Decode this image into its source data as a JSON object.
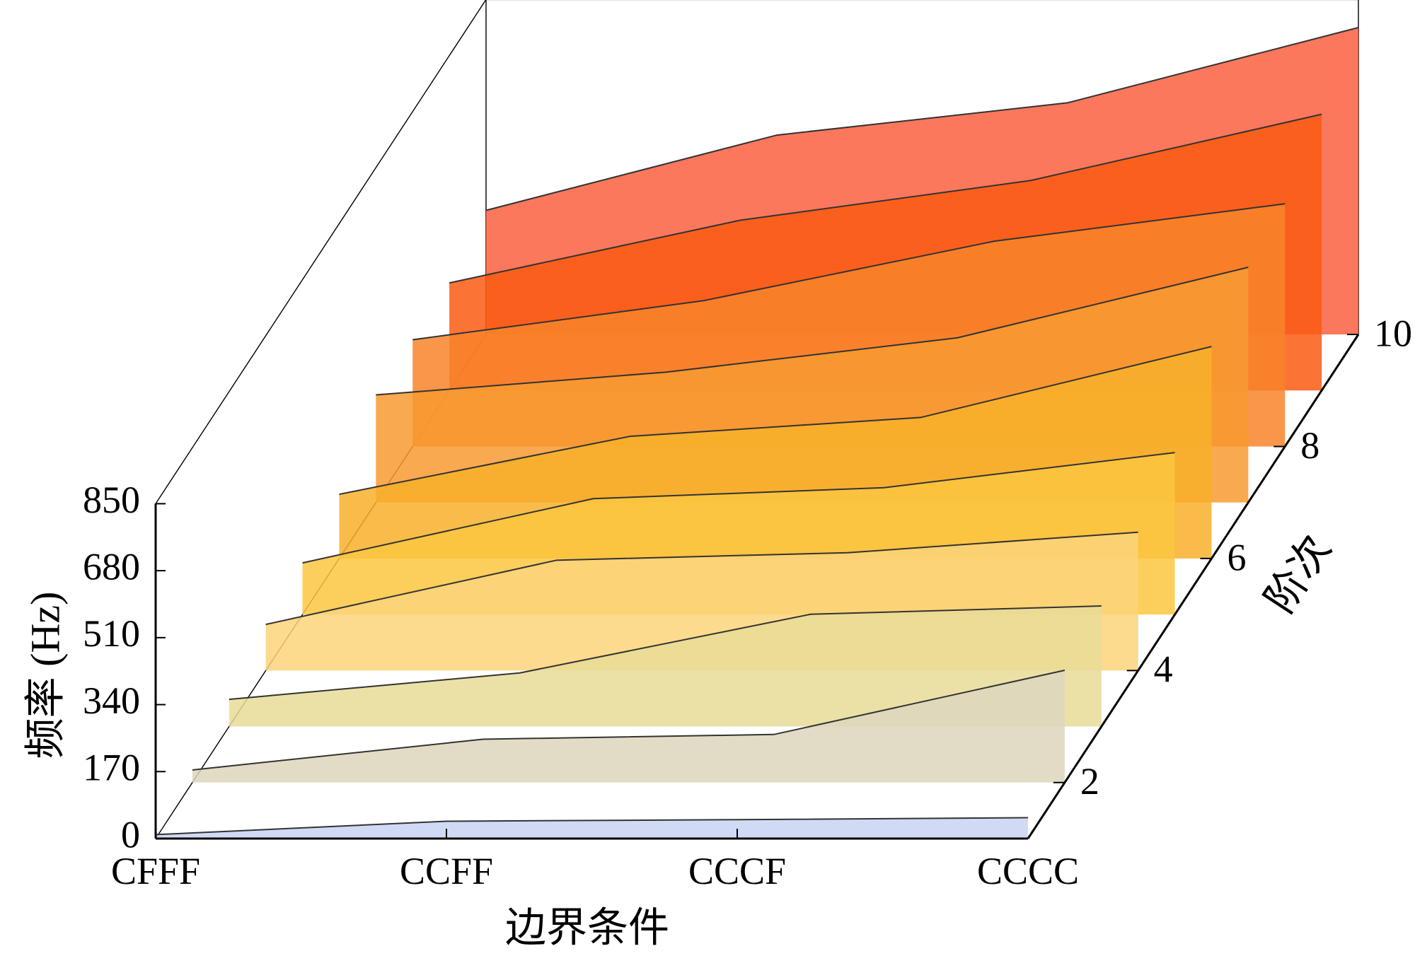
{
  "chart_data": {
    "type": "waterfall3d",
    "x_label": "边界条件",
    "y_label": "频率 (Hz)",
    "z_label": "阶次",
    "categories": [
      "CFFF",
      "CCFF",
      "CCCF",
      "CCCC"
    ],
    "ylim": [
      0,
      850
    ],
    "yticks": [
      0,
      170,
      340,
      510,
      680,
      850
    ],
    "zlim": [
      1,
      10
    ],
    "zticks": [
      2,
      4,
      6,
      8,
      10
    ],
    "z": [
      1,
      2,
      3,
      4,
      5,
      6,
      7,
      8,
      9,
      10
    ],
    "series": [
      {
        "color": "#c9d3f3",
        "values": [
          10,
          44,
          48,
          53
        ]
      },
      {
        "color": "#ddd6bd",
        "values": [
          32,
          110,
          122,
          285
        ]
      },
      {
        "color": "#e8dc98",
        "values": [
          69,
          136,
          285,
          306
        ]
      },
      {
        "color": "#fcd47a",
        "values": [
          117,
          280,
          299,
          351
        ]
      },
      {
        "color": "#fcc640",
        "values": [
          131,
          294,
          322,
          411
        ]
      },
      {
        "color": "#f8b02a",
        "values": [
          163,
          310,
          358,
          538
        ]
      },
      {
        "color": "#f89a30",
        "values": [
          273,
          331,
          418,
          597
        ]
      },
      {
        "color": "#f8842a",
        "values": [
          271,
          370,
          521,
          616
        ]
      },
      {
        "color": "#fa5a12",
        "values": [
          273,
          432,
          533,
          701
        ]
      },
      {
        "color": "#fc6040",
        "values": [
          315,
          506,
          588,
          779
        ]
      }
    ]
  }
}
